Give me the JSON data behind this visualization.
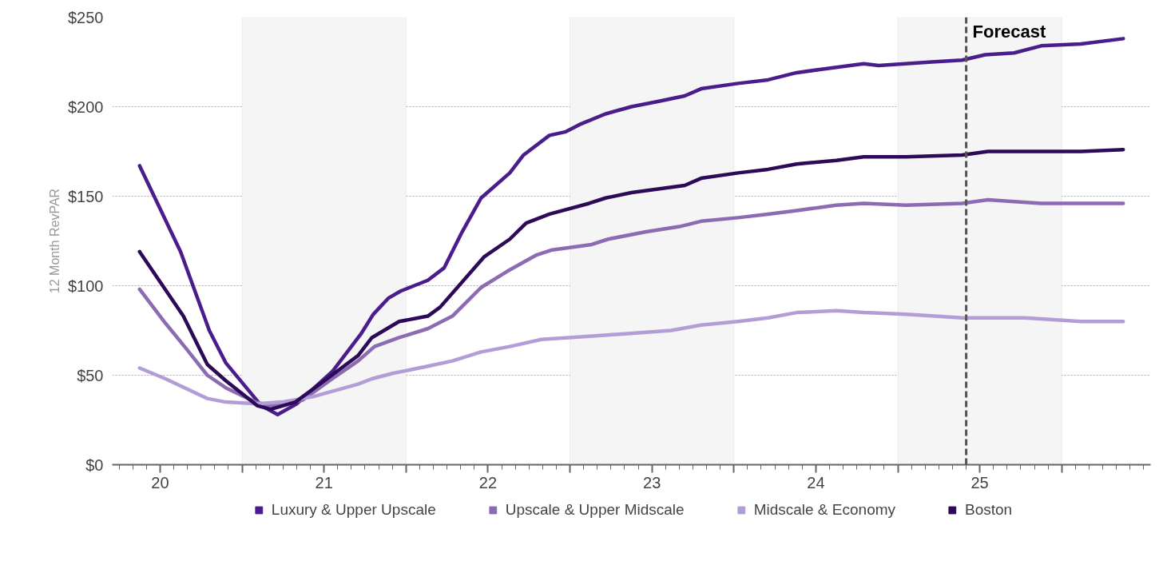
{
  "chart_data": {
    "type": "line",
    "ylabel": "12 Month RevPAR",
    "xlim": [
      19.708,
      26.042
    ],
    "xticks": [
      20,
      {
        "value": 20.5,
        "label": null
      },
      21,
      {
        "value": 21.5,
        "label": null
      },
      22,
      {
        "value": 22.5,
        "label": null
      },
      23,
      {
        "value": 23.5,
        "label": null
      },
      24,
      {
        "value": 24.5,
        "label": null
      },
      25,
      {
        "value": 25.5,
        "label": null
      }
    ],
    "ylim": [
      0,
      250
    ],
    "yticks": [
      {
        "value": 0,
        "label": "$0"
      },
      {
        "value": 50,
        "label": "$50"
      },
      {
        "value": 100,
        "label": "$100"
      },
      {
        "value": 150,
        "label": "$150"
      },
      {
        "value": 200,
        "label": "$200"
      },
      {
        "value": 250,
        "label": "$250"
      }
    ],
    "grid": "y",
    "legend": "bottom",
    "line_style": "solid",
    "marker": "none",
    "bands": [
      {
        "axis": "x",
        "from": 20.5,
        "to": 21.5,
        "color": "#f5f5f5"
      },
      {
        "axis": "x",
        "from": 22.5,
        "to": 23.5,
        "color": "#f5f5f5"
      },
      {
        "axis": "x",
        "from": 24.5,
        "to": 25.5,
        "color": "#f5f5f5"
      }
    ],
    "ref_lines": [
      {
        "axis": "x",
        "value": 24.917,
        "label": "Forecast",
        "color": "#555555",
        "line_style": "dashed"
      }
    ],
    "series": [
      {
        "name": "Luxury & Upper Upscale",
        "color": "#4b1c8c",
        "x": [
          19.875,
          20.125,
          20.3,
          20.4,
          20.617,
          20.717,
          20.833,
          21.05,
          21.225,
          21.3,
          21.392,
          21.467,
          21.55,
          21.633,
          21.733,
          21.842,
          21.958,
          22.133,
          22.217,
          22.375,
          22.475,
          22.558,
          22.717,
          22.875,
          23.042,
          23.2,
          23.3,
          23.525,
          23.708,
          23.883,
          24.042,
          24.292,
          24.383,
          24.708,
          24.892,
          25.033,
          25.208,
          25.375,
          25.617,
          25.875
        ],
        "values": [
          167,
          119,
          75,
          57,
          33,
          28,
          34,
          52,
          73,
          84,
          93,
          97,
          100,
          103,
          110,
          130,
          149,
          163,
          173,
          184,
          186,
          190,
          196,
          200,
          203,
          206,
          210,
          213,
          215,
          219,
          221,
          224,
          223,
          225,
          226,
          229,
          230,
          234,
          235,
          238
        ]
      },
      {
        "name": "Upscale & Upper Midscale",
        "color": "#8b6bb1",
        "x": [
          19.875,
          20.033,
          20.158,
          20.288,
          20.4,
          20.583,
          20.675,
          20.867,
          21.05,
          21.208,
          21.308,
          21.458,
          21.633,
          21.783,
          21.958,
          22.117,
          22.292,
          22.392,
          22.633,
          22.733,
          22.958,
          23.167,
          23.3,
          23.525,
          23.708,
          23.883,
          24.125,
          24.292,
          24.55,
          24.892,
          25.05,
          25.208,
          25.375,
          25.875
        ],
        "values": [
          98,
          79,
          65,
          50,
          43,
          35,
          33,
          36,
          48,
          58,
          66,
          71,
          76,
          83,
          99,
          108,
          117,
          120,
          123,
          126,
          130,
          133,
          136,
          138,
          140,
          142,
          145,
          146,
          145,
          146,
          148,
          147,
          146,
          146
        ]
      },
      {
        "name": "Midscale & Economy",
        "color": "#b39dd6",
        "x": [
          19.875,
          20.033,
          20.288,
          20.4,
          20.592,
          20.742,
          20.933,
          21.208,
          21.292,
          21.417,
          21.633,
          21.783,
          21.958,
          22.133,
          22.325,
          22.492,
          22.817,
          23.117,
          23.3,
          23.525,
          23.708,
          23.883,
          24.125,
          24.292,
          24.55,
          24.725,
          24.892,
          25.275,
          25.617,
          25.875
        ],
        "values": [
          54,
          48,
          37,
          35,
          34,
          35,
          38,
          45,
          48,
          51,
          55,
          58,
          63,
          66,
          70,
          71,
          73,
          75,
          78,
          80,
          82,
          85,
          86,
          85,
          84,
          83,
          82,
          82,
          80,
          80
        ]
      },
      {
        "name": "Boston",
        "color": "#2d0a57",
        "x": [
          19.875,
          20.142,
          20.288,
          20.4,
          20.592,
          20.675,
          20.825,
          21.033,
          21.208,
          21.292,
          21.458,
          21.633,
          21.708,
          21.842,
          21.975,
          22.133,
          22.233,
          22.375,
          22.617,
          22.717,
          22.875,
          23.2,
          23.3,
          23.525,
          23.708,
          23.883,
          24.125,
          24.292,
          24.55,
          24.892,
          25.05,
          25.375,
          25.617,
          25.875
        ],
        "values": [
          119,
          83,
          56,
          47,
          33,
          31,
          35,
          49,
          61,
          71,
          80,
          83,
          88,
          102,
          116,
          126,
          135,
          140,
          146,
          149,
          152,
          156,
          160,
          163,
          165,
          168,
          170,
          172,
          172,
          173,
          175,
          175,
          175,
          176
        ]
      }
    ]
  }
}
